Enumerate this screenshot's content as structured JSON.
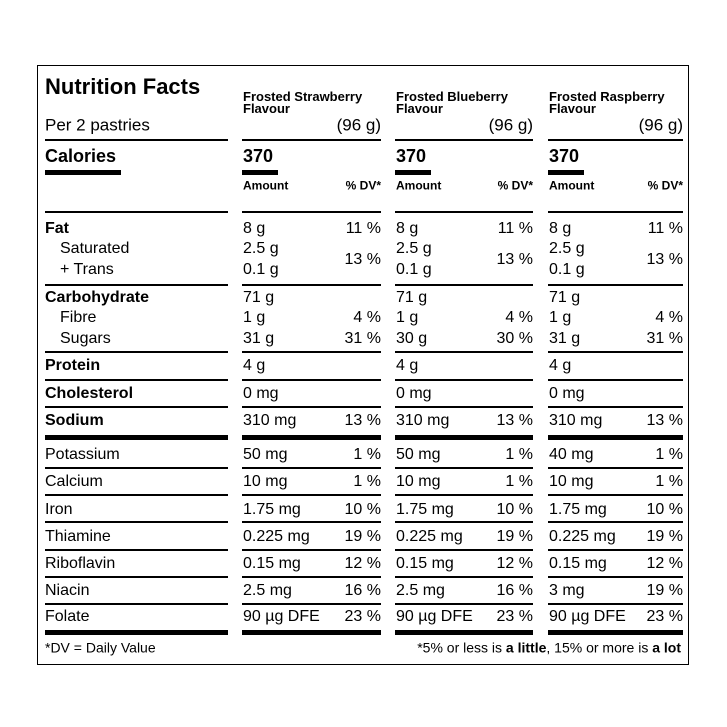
{
  "title": "Nutrition Facts",
  "serving": "Per 2 pastries",
  "calories_label": "Calories",
  "amount_header": "Amount",
  "dv_header": "% DV*",
  "products": [
    {
      "name": "Frosted Strawberry Flavour",
      "size": "(96 g)",
      "calories": "370"
    },
    {
      "name": "Frosted Blueberry Flavour",
      "size": "(96 g)",
      "calories": "370"
    },
    {
      "name": "Frosted Raspberry Flavour",
      "size": "(96 g)",
      "calories": "370"
    }
  ],
  "sections": [
    {
      "rows": [
        {
          "label": "Fat",
          "values": [
            {
              "amount": "8 g",
              "dv": "11 %"
            },
            {
              "amount": "8 g",
              "dv": "11 %"
            },
            {
              "amount": "8 g",
              "dv": "11 %"
            }
          ]
        },
        {
          "labels": [
            "Saturated",
            "+ Trans"
          ],
          "values": [
            {
              "amounts": [
                "2.5 g",
                "0.1 g"
              ],
              "dv": "13 %"
            },
            {
              "amounts": [
                "2.5 g",
                "0.1 g"
              ],
              "dv": "13 %"
            },
            {
              "amounts": [
                "2.5 g",
                "0.1 g"
              ],
              "dv": "13 %"
            }
          ]
        }
      ]
    },
    {
      "rows": [
        {
          "label": "Carbohydrate",
          "values": [
            {
              "amount": "71 g"
            },
            {
              "amount": "71 g"
            },
            {
              "amount": "71 g"
            }
          ]
        },
        {
          "label": "Fibre",
          "values": [
            {
              "amount": "1 g",
              "dv": "4 %"
            },
            {
              "amount": "1 g",
              "dv": "4 %"
            },
            {
              "amount": "1 g",
              "dv": "4 %"
            }
          ]
        },
        {
          "label": "Sugars",
          "values": [
            {
              "amount": "31 g",
              "dv": "31 %"
            },
            {
              "amount": "30 g",
              "dv": "30 %"
            },
            {
              "amount": "31 g",
              "dv": "31 %"
            }
          ]
        }
      ]
    },
    {
      "rows": [
        {
          "label": "Protein",
          "values": [
            {
              "amount": "4 g"
            },
            {
              "amount": "4 g"
            },
            {
              "amount": "4 g"
            }
          ]
        }
      ]
    },
    {
      "rows": [
        {
          "label": "Cholesterol",
          "values": [
            {
              "amount": "0 mg"
            },
            {
              "amount": "0 mg"
            },
            {
              "amount": "0 mg"
            }
          ]
        }
      ]
    },
    {
      "rows": [
        {
          "label": "Sodium",
          "values": [
            {
              "amount": "310 mg",
              "dv": "13 %"
            },
            {
              "amount": "310 mg",
              "dv": "13 %"
            },
            {
              "amount": "310 mg",
              "dv": "13 %"
            }
          ]
        }
      ]
    },
    {
      "rows": [
        {
          "label": "Potassium",
          "values": [
            {
              "amount": "50 mg",
              "dv": "1 %"
            },
            {
              "amount": "50 mg",
              "dv": "1 %"
            },
            {
              "amount": "40 mg",
              "dv": "1 %"
            }
          ]
        }
      ]
    },
    {
      "rows": [
        {
          "label": "Calcium",
          "values": [
            {
              "amount": "10 mg",
              "dv": "1 %"
            },
            {
              "amount": "10 mg",
              "dv": "1 %"
            },
            {
              "amount": "10 mg",
              "dv": "1 %"
            }
          ]
        }
      ]
    },
    {
      "rows": [
        {
          "label": "Iron",
          "values": [
            {
              "amount": "1.75 mg",
              "dv": "10 %"
            },
            {
              "amount": "1.75 mg",
              "dv": "10 %"
            },
            {
              "amount": "1.75 mg",
              "dv": "10 %"
            }
          ]
        }
      ]
    },
    {
      "rows": [
        {
          "label": "Thiamine",
          "values": [
            {
              "amount": "0.225 mg",
              "dv": "19 %"
            },
            {
              "amount": "0.225 mg",
              "dv": "19 %"
            },
            {
              "amount": "0.225 mg",
              "dv": "19 %"
            }
          ]
        }
      ]
    },
    {
      "rows": [
        {
          "label": "Riboflavin",
          "values": [
            {
              "amount": "0.15 mg",
              "dv": "12 %"
            },
            {
              "amount": "0.15 mg",
              "dv": "12 %"
            },
            {
              "amount": "0.15 mg",
              "dv": "12 %"
            }
          ]
        }
      ]
    },
    {
      "rows": [
        {
          "label": "Niacin",
          "values": [
            {
              "amount": "2.5 mg",
              "dv": "16 %"
            },
            {
              "amount": "2.5 mg",
              "dv": "16 %"
            },
            {
              "amount": "3 mg",
              "dv": "19 %"
            }
          ]
        }
      ]
    },
    {
      "rows": [
        {
          "label": "Folate",
          "values": [
            {
              "amount": "90 µg DFE",
              "dv": "23 %"
            },
            {
              "amount": "90 µg DFE",
              "dv": "23 %"
            },
            {
              "amount": "90 µg DFE",
              "dv": "23 %"
            }
          ]
        }
      ]
    }
  ],
  "footnote_left": "*DV = Daily Value",
  "footnote_right": [
    "*5% or less is ",
    "a little",
    ", 15% or more is ",
    "a lot"
  ]
}
